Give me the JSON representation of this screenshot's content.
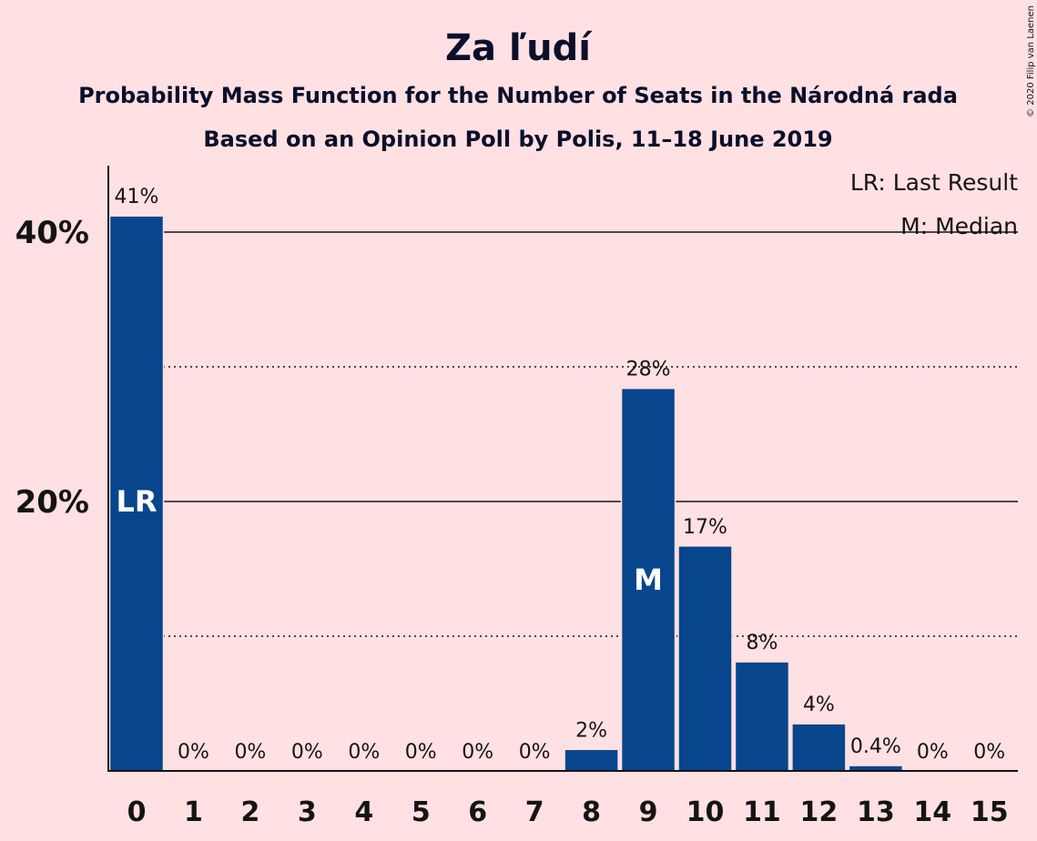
{
  "chart_data": {
    "type": "bar",
    "title": "Za ľudí",
    "subtitles": [
      "Probability Mass Function for the Number of Seats in the Národná rada",
      "Based on an Opinion Poll by Polis, 11–18 June 2019"
    ],
    "legend": [
      "LR: Last Result",
      "M: Median"
    ],
    "legend_position": "top-right",
    "copyright": "© 2020 Filip van Laenen",
    "categories": [
      "0",
      "1",
      "2",
      "3",
      "4",
      "5",
      "6",
      "7",
      "8",
      "9",
      "10",
      "11",
      "12",
      "13",
      "14",
      "15"
    ],
    "values": [
      41.2,
      0,
      0,
      0,
      0,
      0,
      0,
      0,
      1.6,
      28.4,
      16.7,
      8.1,
      3.5,
      0.4,
      0,
      0
    ],
    "value_labels": [
      "41%",
      "0%",
      "0%",
      "0%",
      "0%",
      "0%",
      "0%",
      "0%",
      "2%",
      "28%",
      "17%",
      "8%",
      "4%",
      "0.4%",
      "0%",
      "0%"
    ],
    "markers": [
      {
        "category": "0",
        "label": "LR"
      },
      {
        "category": "9",
        "label": "M"
      }
    ],
    "yticks": [
      {
        "value": 20,
        "label": "20%"
      },
      {
        "value": 40,
        "label": "40%"
      }
    ],
    "gridlines_solid": [
      20,
      40
    ],
    "gridlines_dotted": [
      10,
      30
    ],
    "ylim": [
      0,
      45
    ],
    "bar_color": "#07468C",
    "background_color": "#FFE0E3",
    "xlabel": "",
    "ylabel": ""
  }
}
